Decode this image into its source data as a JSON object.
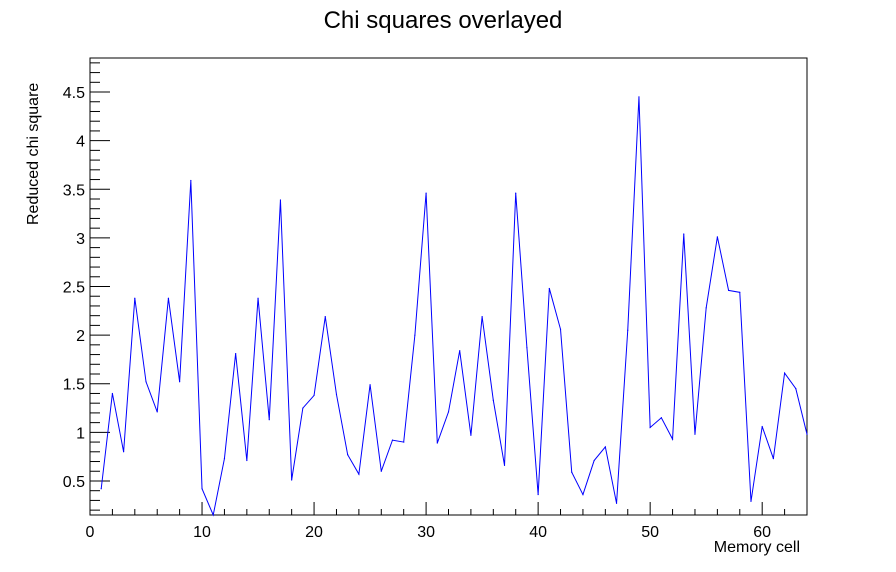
{
  "chart_data": {
    "type": "line",
    "title": "Chi squares overlayed",
    "xlabel": "Memory cell",
    "ylabel": "Reduced chi square",
    "xlim": [
      0,
      64
    ],
    "ylim": [
      0.15,
      4.85
    ],
    "grid": false,
    "line_color": "#0000ff",
    "x_ticks": [
      0,
      10,
      20,
      30,
      40,
      50,
      60
    ],
    "y_ticks": [
      0.5,
      1,
      1.5,
      2,
      2.5,
      3,
      3.5,
      4,
      4.5
    ],
    "x_tick_labels": [
      "0",
      "10",
      "20",
      "30",
      "40",
      "50",
      "60"
    ],
    "y_tick_labels": [
      "0.5",
      "1",
      "1.5",
      "2",
      "2.5",
      "3",
      "3.5",
      "4",
      "4.5"
    ],
    "series": [
      {
        "x": [
          1,
          2,
          3,
          4,
          5,
          6,
          7,
          8,
          9,
          10,
          11,
          12,
          13,
          14,
          15,
          16,
          17,
          18,
          19,
          20,
          21,
          22,
          23,
          24,
          25,
          26,
          27,
          28,
          29,
          30,
          31,
          32,
          33,
          34,
          35,
          36,
          37,
          38,
          39,
          40,
          41,
          42,
          43,
          44,
          45,
          46,
          47,
          48,
          49,
          50,
          51,
          52,
          53,
          54,
          55,
          56,
          57,
          58,
          59,
          60,
          61,
          62,
          63,
          64
        ],
        "values": [
          0.42,
          1.4,
          0.8,
          2.38,
          1.52,
          1.21,
          2.38,
          1.52,
          3.59,
          0.42,
          0.15,
          0.73,
          1.81,
          0.71,
          2.38,
          1.13,
          3.39,
          0.51,
          1.25,
          1.38,
          2.19,
          1.39,
          0.77,
          0.57,
          1.49,
          0.6,
          0.92,
          0.9,
          2.0,
          3.46,
          0.89,
          1.21,
          1.84,
          0.97,
          2.19,
          1.33,
          0.66,
          3.46,
          1.87,
          0.36,
          2.48,
          2.06,
          0.59,
          0.36,
          0.71,
          0.85,
          0.27,
          2.05,
          4.45,
          1.05,
          1.15,
          0.93,
          3.04,
          0.98,
          2.28,
          3.01,
          2.46,
          2.44,
          0.29,
          1.06,
          0.73,
          1.61,
          1.45,
          0.98
        ]
      }
    ]
  }
}
